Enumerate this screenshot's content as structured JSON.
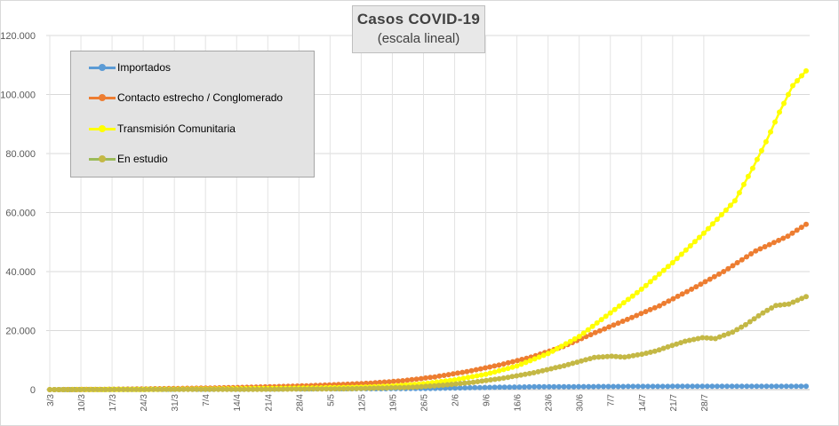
{
  "chart_data": {
    "type": "line",
    "title": "Casos  COVID-19",
    "subtitle": "(escala lineal)",
    "xlabel": "",
    "ylabel": "",
    "ylim": [
      0,
      120000
    ],
    "yticks": [
      0,
      20000,
      40000,
      60000,
      80000,
      100000,
      120000
    ],
    "ytick_labels": [
      "0",
      "20.000",
      "40.000",
      "60.000",
      "80.000",
      "100.000",
      "120.000"
    ],
    "xtick_labels": [
      "3/3",
      "10/3",
      "17/3",
      "24/3",
      "31/3",
      "7/4",
      "14/4",
      "21/4",
      "28/4",
      "5/5",
      "12/5",
      "19/5",
      "26/5",
      "2/6",
      "9/6",
      "16/6",
      "23/6",
      "30/6",
      "7/7",
      "14/7",
      "21/7",
      "28/7"
    ],
    "x_start": "3/3",
    "x_end": "3/8",
    "days": 154,
    "grid": true,
    "legend_position": "top-left",
    "series": [
      {
        "name": "Importados",
        "color": "#5b9bd5",
        "points": [
          [
            0,
            0
          ],
          [
            14,
            50
          ],
          [
            28,
            150
          ],
          [
            42,
            230
          ],
          [
            56,
            290
          ],
          [
            70,
            320
          ],
          [
            77,
            400
          ],
          [
            84,
            600
          ],
          [
            91,
            800
          ],
          [
            98,
            950
          ],
          [
            105,
            1000
          ],
          [
            112,
            1050
          ],
          [
            119,
            1080
          ],
          [
            126,
            1100
          ],
          [
            133,
            1110
          ],
          [
            140,
            1120
          ],
          [
            147,
            1130
          ],
          [
            153,
            1140
          ]
        ]
      },
      {
        "name": "Contacto estrecho / Conglomerado",
        "color": "#ed7d31",
        "points": [
          [
            0,
            0
          ],
          [
            7,
            50
          ],
          [
            14,
            120
          ],
          [
            21,
            250
          ],
          [
            28,
            400
          ],
          [
            35,
            550
          ],
          [
            42,
            750
          ],
          [
            49,
            1000
          ],
          [
            56,
            1300
          ],
          [
            63,
            1700
          ],
          [
            70,
            2200
          ],
          [
            77,
            3000
          ],
          [
            84,
            4300
          ],
          [
            91,
            6100
          ],
          [
            98,
            8300
          ],
          [
            105,
            11000
          ],
          [
            112,
            14600
          ],
          [
            119,
            19300
          ],
          [
            126,
            23800
          ],
          [
            133,
            28400
          ],
          [
            140,
            34000
          ],
          [
            147,
            40000
          ],
          [
            154,
            47000
          ],
          [
            161,
            52000
          ],
          [
            165,
            56000
          ]
        ]
      },
      {
        "name": "Transmisión Comunitaria",
        "color": "#ffff00",
        "points": [
          [
            0,
            0
          ],
          [
            14,
            50
          ],
          [
            28,
            150
          ],
          [
            42,
            300
          ],
          [
            56,
            500
          ],
          [
            70,
            800
          ],
          [
            77,
            1200
          ],
          [
            84,
            2000
          ],
          [
            91,
            3300
          ],
          [
            98,
            5200
          ],
          [
            105,
            8000
          ],
          [
            112,
            12200
          ],
          [
            119,
            18000
          ],
          [
            126,
            26000
          ],
          [
            133,
            34000
          ],
          [
            140,
            43000
          ],
          [
            147,
            53000
          ],
          [
            154,
            64000
          ],
          [
            158,
            75000
          ],
          [
            161,
            84000
          ],
          [
            164,
            94000
          ],
          [
            167,
            103000
          ],
          [
            170,
            108000
          ]
        ]
      }
    ],
    "series_en_estudio": {
      "name": "En estudio",
      "color": "#9bbb59"
    }
  }
}
